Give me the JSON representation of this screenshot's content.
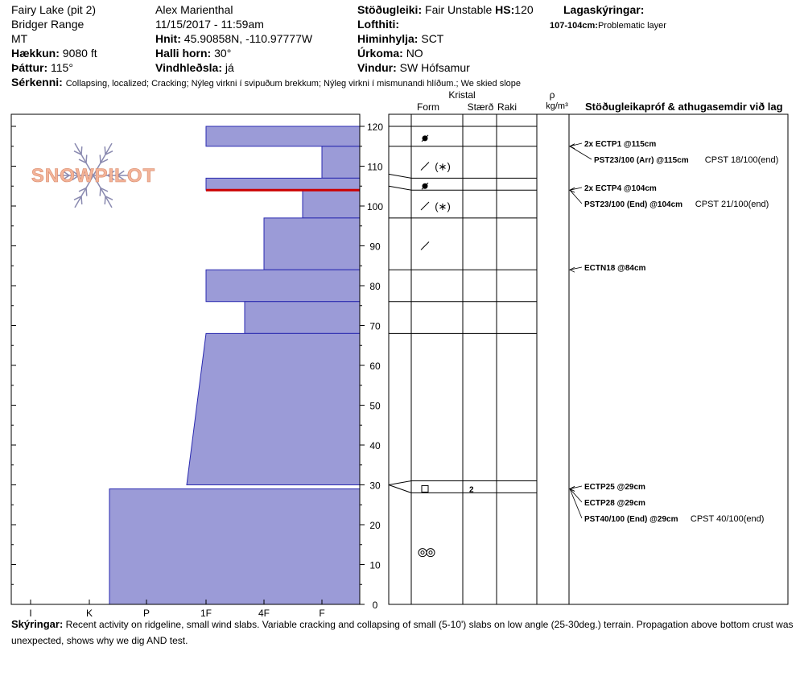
{
  "header": {
    "location": "Fairy Lake (pit 2)",
    "range": "Bridger Range",
    "state": "MT",
    "elevation_label": "Hækkun:",
    "elevation": "9080 ft",
    "aspect_label": "Þáttur:",
    "aspect": "115°",
    "observer": "Alex Marienthal",
    "datetime": "11/15/2017 - 11:59am",
    "coords_label": "Hnit:",
    "coords": "45.90858N, -110.97777W",
    "slope_label": "Halli horn:",
    "slope": "30°",
    "wind_loading_label": "Vindhleðsla:",
    "wind_loading": "já",
    "stability_label": "Stöðugleiki:",
    "stability": "Fair Unstable",
    "hs_label": "HS:",
    "hs": "120",
    "air_temp_label": "Lofthiti:",
    "air_temp": "",
    "sky_label": "Himinhylja:",
    "sky": "SCT",
    "precip_label": "Úrkoma:",
    "precip": "NO",
    "wind_label": "Vindur:",
    "wind": "SW Hófsamur",
    "layer_notes_label": "Lagaskýringar:",
    "layer_note_depth": "107-104cm:",
    "layer_note_text": "Problematic layer",
    "features_label": "Sérkenni:",
    "features": "Collapsing, localized;  Cracking;  Nýleg virkni í svipuðum brekkum;  Nýleg virkni í mismunandi hlíðum.;  We skied slope"
  },
  "columns": {
    "crystal": "Kristal",
    "form": "Form",
    "size": "Stærð",
    "moisture": "Raki",
    "density_symbol": "ρ",
    "density_unit": "kg/m³",
    "tests": "Stöðugleikapróf & athugasemdir við lag"
  },
  "logo_text": "SNOWPILOT",
  "colors": {
    "layer_fill": "#9b9bd7",
    "layer_edge": "#2a2ab0",
    "problem_layer": "#cc0000",
    "logo": "#f3b49a"
  },
  "chart_data": {
    "type": "area",
    "title": "",
    "ylabel": "",
    "xlabel": "",
    "ylim": [
      0,
      120
    ],
    "y_ticks": [
      0,
      10,
      20,
      30,
      40,
      50,
      60,
      70,
      80,
      90,
      100,
      110,
      120
    ],
    "x_ticks": [
      "I",
      "K",
      "P",
      "1F",
      "4F",
      "F"
    ],
    "hardness_profile": [
      {
        "bottom": 115,
        "top": 120,
        "hardness_top": "1F",
        "hardness_bottom": "1F"
      },
      {
        "bottom": 107,
        "top": 115,
        "hardness_top": "F",
        "hardness_bottom": "F"
      },
      {
        "bottom": 104,
        "top": 107,
        "hardness_top": "1F",
        "hardness_bottom": "1F"
      },
      {
        "bottom": 97,
        "top": 104,
        "hardness_top": "4F-",
        "hardness_bottom": "4F-"
      },
      {
        "bottom": 84,
        "top": 97,
        "hardness_top": "4F",
        "hardness_bottom": "4F"
      },
      {
        "bottom": 76,
        "top": 84,
        "hardness_top": "1F",
        "hardness_bottom": "1F"
      },
      {
        "bottom": 68,
        "top": 76,
        "hardness_top": "4F+",
        "hardness_bottom": "4F+"
      },
      {
        "bottom": 30,
        "top": 68,
        "hardness_top": "1F",
        "hardness_bottom": "1F+"
      },
      {
        "bottom": 0,
        "top": 29,
        "hardness_top": "P",
        "hardness_bottom": "P"
      }
    ],
    "problem_layer_depth": 104,
    "layer_boundaries": [
      120,
      115,
      107,
      104,
      97,
      84,
      76,
      68,
      31,
      28,
      0
    ],
    "crystal_rows": [
      {
        "depth": 117,
        "form_icon": "rounded-grain-icon",
        "size": ""
      },
      {
        "depth": 110,
        "form_icon": "decomposing-precip-icon",
        "size": ""
      },
      {
        "depth": 105,
        "form_icon": "rounded-grain-icon",
        "size": ""
      },
      {
        "depth": 100,
        "form_icon": "decomposing-precip-icon",
        "size": ""
      },
      {
        "depth": 90,
        "form_icon": "decomposing-fragment-icon",
        "size": ""
      },
      {
        "depth": 29,
        "form_icon": "faceted-crystal-icon",
        "size": "2"
      },
      {
        "depth": 13,
        "form_icon": "melt-form-icon",
        "size": ""
      }
    ],
    "tests": [
      {
        "depth": 115,
        "text": "2x ECTP1 @115cm",
        "extra": ""
      },
      {
        "depth": 115,
        "text": "PST23/100 (Arr) @115cm",
        "extra": "CPST 18/100(end)"
      },
      {
        "depth": 104,
        "text": "2x ECTP4 @104cm",
        "extra": ""
      },
      {
        "depth": 104,
        "text": "PST23/100 (End) @104cm",
        "extra": "CPST 21/100(end)"
      },
      {
        "depth": 84,
        "text": "ECTN18 @84cm",
        "extra": ""
      },
      {
        "depth": 29,
        "text": "ECTP25 @29cm",
        "extra": ""
      },
      {
        "depth": 29,
        "text": "ECTP28 @29cm",
        "extra": ""
      },
      {
        "depth": 29,
        "text": "PST40/100 (End) @29cm",
        "extra": "CPST 40/100(end)"
      }
    ]
  },
  "notes": {
    "label": "Skýringar:",
    "text": "Recent activity on ridgeline, small wind slabs. Variable cracking and collapsing of small (5-10') slabs on low angle (25-30deg.) terrain. Propagation above bottom crust was unexpected, shows why we dig AND test."
  }
}
